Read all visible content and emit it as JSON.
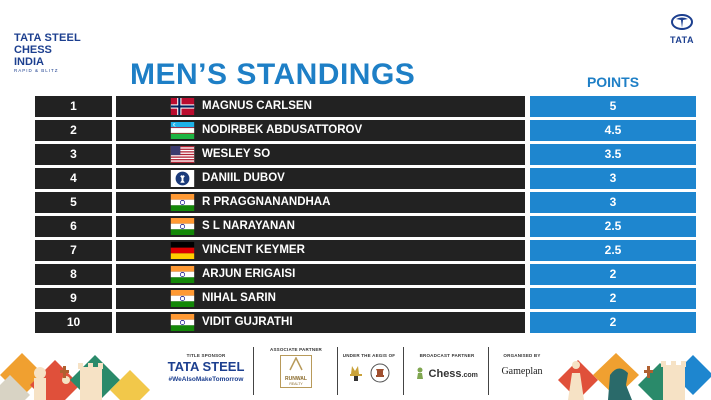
{
  "event_logo": {
    "line1": "TATA STEEL",
    "line2": "CHESS INDIA",
    "line3": "RAPID & BLITZ"
  },
  "brand_logo": {
    "text": "TATA"
  },
  "heading": "MEN’S STANDINGS",
  "points_header": "POINTS",
  "standings": [
    {
      "rank": "1",
      "name": "MAGNUS CARLSEN",
      "flag": "norway",
      "points": "5"
    },
    {
      "rank": "2",
      "name": "NODIRBEK ABDUSATTOROV",
      "flag": "uzbekistan",
      "points": "4.5"
    },
    {
      "rank": "3",
      "name": "WESLEY SO",
      "flag": "usa",
      "points": "3.5"
    },
    {
      "rank": "4",
      "name": "DANIIL DUBOV",
      "flag": "fide",
      "points": "3"
    },
    {
      "rank": "5",
      "name": "R PRAGGNANANDHAA",
      "flag": "india",
      "points": "3"
    },
    {
      "rank": "6",
      "name": "S L NARAYANAN",
      "flag": "india",
      "points": "2.5"
    },
    {
      "rank": "7",
      "name": "VINCENT KEYMER",
      "flag": "germany",
      "points": "2.5"
    },
    {
      "rank": "8",
      "name": "ARJUN ERIGAISI",
      "flag": "india",
      "points": "2"
    },
    {
      "rank": "9",
      "name": "NIHAL SARIN",
      "flag": "india",
      "points": "2"
    },
    {
      "rank": "10",
      "name": "VIDIT GUJRATHI",
      "flag": "india",
      "points": "2"
    }
  ],
  "footer": {
    "title_sponsor": {
      "label": "TITLE SPONSOR",
      "name": "TATA STEEL",
      "tagline": "#WeAlsoMakeTomorrow"
    },
    "associate_partner": {
      "label": "ASSOCIATE PARTNER",
      "name": "RUNWAL",
      "sub": "REALTY"
    },
    "aegis": {
      "label": "UNDER THE AEGIS OF"
    },
    "broadcast_partner": {
      "label": "BROADCAST PARTNER",
      "name": "Chess",
      "suffix": ".com"
    },
    "organiser": {
      "label": "ORGANISED BY",
      "name": "Gameplan"
    }
  },
  "colors": {
    "accent": "#1e7fc6",
    "points_bg": "#1e86cf",
    "row_bg": "#222222",
    "brand": "#1c3f8f"
  }
}
